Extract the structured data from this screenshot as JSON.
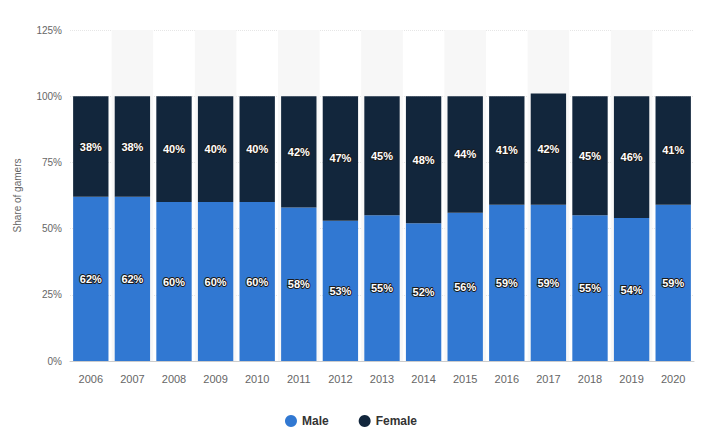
{
  "chart_data": {
    "type": "bar",
    "stacked": true,
    "y_label": "Share of gamers",
    "categories": [
      "2006",
      "2007",
      "2008",
      "2009",
      "2010",
      "2011",
      "2012",
      "2013",
      "2014",
      "2015",
      "2016",
      "2017",
      "2018",
      "2019",
      "2020"
    ],
    "series": [
      {
        "name": "Male",
        "color": "#3178d2",
        "values": [
          62,
          62,
          60,
          60,
          60,
          58,
          53,
          55,
          52,
          56,
          59,
          59,
          55,
          54,
          59
        ],
        "value_labels": [
          "62%",
          "62%",
          "60%",
          "60%",
          "60%",
          "58%",
          "53%",
          "55%",
          "52%",
          "56%",
          "59%",
          "59%",
          "55%",
          "54%",
          "59%"
        ]
      },
      {
        "name": "Female",
        "color": "#12263c",
        "values": [
          38,
          38,
          40,
          40,
          40,
          42,
          47,
          45,
          48,
          44,
          41,
          42,
          45,
          46,
          41
        ],
        "value_labels": [
          "38%",
          "38%",
          "40%",
          "40%",
          "40%",
          "42%",
          "47%",
          "45%",
          "48%",
          "44%",
          "41%",
          "42%",
          "45%",
          "46%",
          "41%"
        ]
      }
    ],
    "ylim": [
      0,
      125
    ],
    "yticks": [
      {
        "value": 0,
        "label": "0%"
      },
      {
        "value": 25,
        "label": "25%"
      },
      {
        "value": 50,
        "label": "50%"
      },
      {
        "value": 75,
        "label": "75%"
      },
      {
        "value": 100,
        "label": "100%"
      },
      {
        "value": 125,
        "label": "125%"
      }
    ],
    "grid": true,
    "legend": "bottom",
    "data_labels": true
  }
}
